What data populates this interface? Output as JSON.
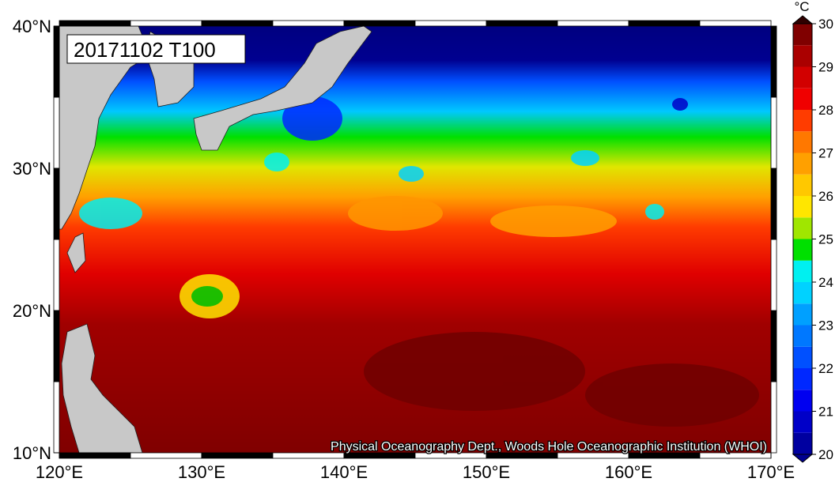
{
  "map": {
    "title": "20171102 T100",
    "credit": "Physical Oceanography Dept., Woods Hole Oceanographic Institution (WHOI)",
    "lat_ticks": [
      {
        "value": 10,
        "label": "10°N"
      },
      {
        "value": 20,
        "label": "20°N"
      },
      {
        "value": 30,
        "label": "30°N"
      },
      {
        "value": 40,
        "label": "40°N"
      }
    ],
    "lon_ticks": [
      {
        "value": 120,
        "label": "120°E"
      },
      {
        "value": 130,
        "label": "130°E"
      },
      {
        "value": 140,
        "label": "140°E"
      },
      {
        "value": 150,
        "label": "150°E"
      },
      {
        "value": 160,
        "label": "160°E"
      },
      {
        "value": 170,
        "label": "170°E"
      }
    ],
    "colorbar": {
      "unit": "°C",
      "ticks": [
        20,
        21,
        22,
        23,
        24,
        25,
        26,
        27,
        28,
        29,
        30
      ],
      "colors": [
        "#0000a0",
        "#0000c8",
        "#0000f0",
        "#0028ff",
        "#0050ff",
        "#0078ff",
        "#00a0ff",
        "#00d2ff",
        "#00f0f0",
        "#00e000",
        "#a0e600",
        "#ffe600",
        "#ffc800",
        "#ffa000",
        "#ff7800",
        "#ff3c00",
        "#f00000",
        "#d20000",
        "#aa0000",
        "#800000"
      ]
    }
  }
}
